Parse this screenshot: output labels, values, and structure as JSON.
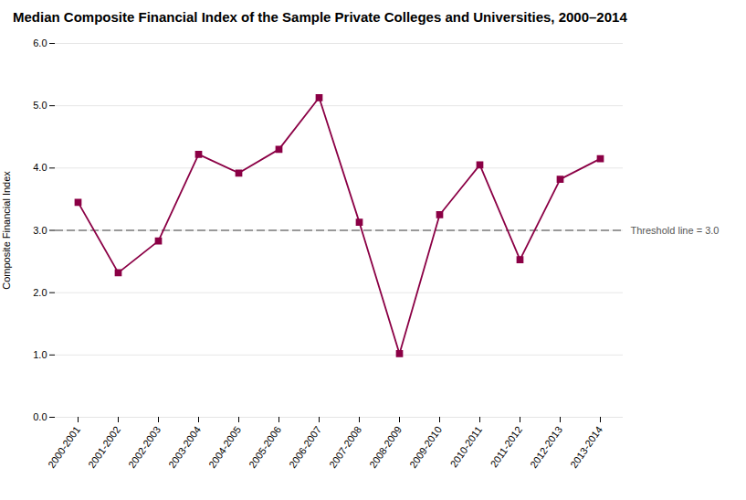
{
  "chart_data": {
    "type": "line",
    "title": "Median Composite Financial Index of the Sample Private Colleges and Universities, 2000–2014",
    "ylabel": "Composite Financial Index",
    "categories": [
      "2000-2001",
      "2001-2002",
      "2002-2003",
      "2003-2004",
      "2004-2005",
      "2005-2006",
      "2006-2007",
      "2007-2008",
      "2008-2009",
      "2009-2010",
      "2010-2011",
      "2011-2012",
      "2012-2013",
      "2013-2014"
    ],
    "values": [
      3.45,
      2.32,
      2.83,
      4.22,
      3.92,
      4.3,
      5.13,
      3.13,
      1.02,
      3.25,
      4.05,
      2.53,
      3.82,
      4.15
    ],
    "color": "#8B0045",
    "marker": "square",
    "threshold": {
      "value": 3.0,
      "label": "Threshold line = 3.0",
      "color": "#999999",
      "line_style": "dashed"
    },
    "ylim": [
      0.0,
      6.0
    ],
    "yticks": [
      {
        "value": 0.0,
        "label": "0.0"
      },
      {
        "value": 1.0,
        "label": "1.0"
      },
      {
        "value": 2.0,
        "label": "2.0"
      },
      {
        "value": 3.0,
        "label": "3.0"
      },
      {
        "value": 4.0,
        "label": "4.0"
      },
      {
        "value": 5.0,
        "label": "5.0"
      },
      {
        "value": 6.0,
        "label": "6.0"
      }
    ],
    "grid": true
  }
}
